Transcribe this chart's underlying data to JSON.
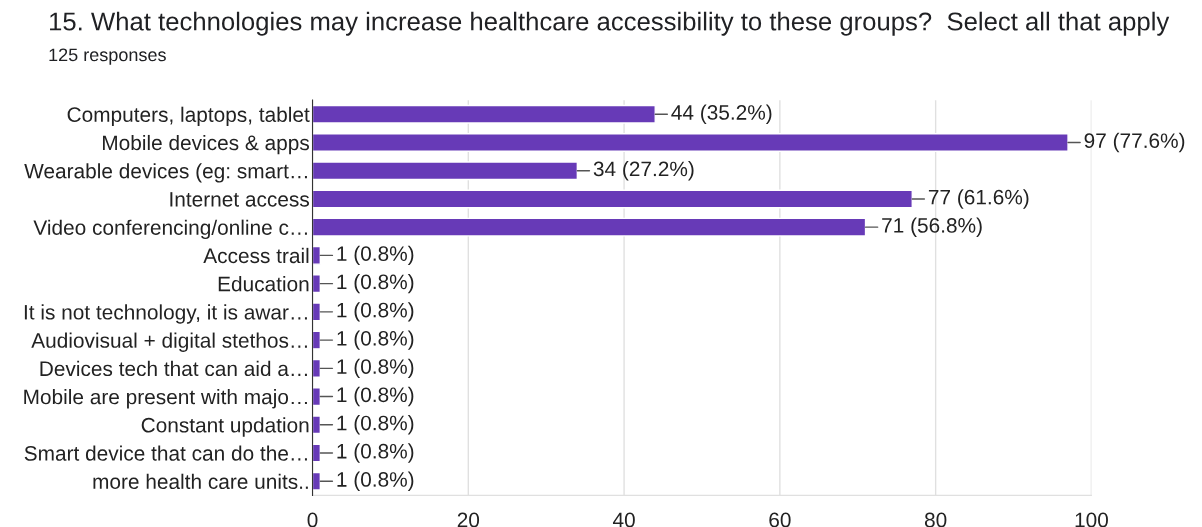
{
  "chart_data": {
    "type": "bar",
    "orientation": "horizontal",
    "title": "15. What technologies may increase healthcare accessibility to these groups?  Select all that apply",
    "subtitle": "125 responses",
    "categories": [
      "Computers, laptops, tablet",
      "Mobile devices & apps",
      "Wearable devices (eg: smart…",
      "Internet access",
      "Video conferencing/online c…",
      "Access trail",
      "Education",
      "It is not technology, it is awar…",
      "Audiovisual + digital stethos…",
      "Devices tech that can aid a…",
      "Mobile are present with majo…",
      "Constant updation",
      "Smart device that can do the…",
      "more health care units.."
    ],
    "values": [
      44,
      97,
      34,
      77,
      71,
      1,
      1,
      1,
      1,
      1,
      1,
      1,
      1,
      1
    ],
    "value_labels": [
      "44 (35.2%)",
      "97 (77.6%)",
      "34 (27.2%)",
      "77 (61.6%)",
      "71 (56.8%)",
      "1 (0.8%)",
      "1 (0.8%)",
      "1 (0.8%)",
      "1 (0.8%)",
      "1 (0.8%)",
      "1 (0.8%)",
      "1 (0.8%)",
      "1 (0.8%)",
      "1 (0.8%)"
    ],
    "color": "#673ab7",
    "xlim": [
      0,
      100
    ],
    "xticks": [
      0,
      20,
      40,
      60,
      80,
      100
    ],
    "grid": "x",
    "legend": false
  }
}
